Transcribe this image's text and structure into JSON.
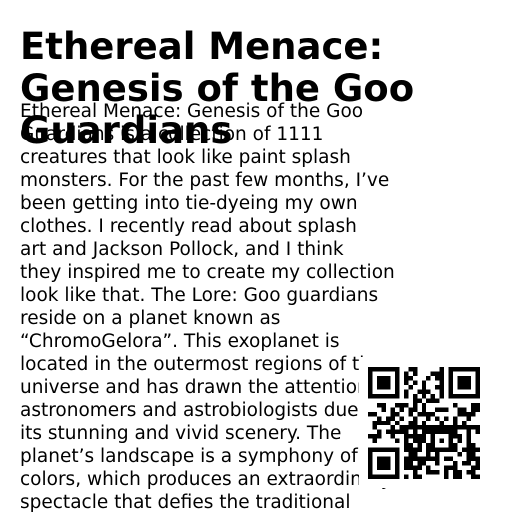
{
  "title": "Ethereal Menace: Genesis of the Goo Guardians",
  "body_lines": [
    "Ethereal Menace: Genesis of the Goo",
    "Guardians is a collection of 1111",
    "creatures that look like paint splash",
    "monsters.  For the past few months, I’ve",
    "been getting into tie-dyeing my own",
    "clothes. I recently read about splash",
    "art and Jackson Pollock, and I think",
    "they inspired me to create my collection",
    "look like that. The Lore: Goo guardians",
    "reside on a planet known as",
    "“ChromoGelora”. This exoplanet is",
    "located in the outermost regions of the",
    "universe and has drawn the attention of",
    "astronomers and astrobiologists due to",
    "its stunning and vivid scenery. The",
    "planet’s landscape is a symphony of",
    "colors, which produces an extraordinary",
    "spectacle that defies the traditional"
  ],
  "qr_code": {
    "icon": "qr-code-icon",
    "foreground_color": "#000000",
    "background_color": "#ffffff"
  }
}
